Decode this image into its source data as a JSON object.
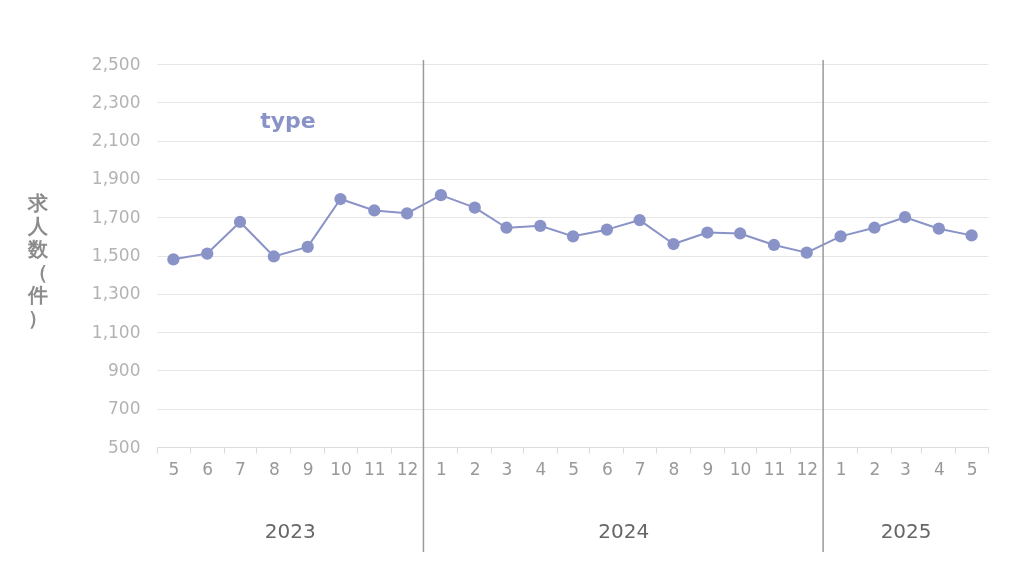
{
  "chart_data": {
    "type": "line",
    "ylabel": "求人数（件）",
    "x": [
      "2023-05",
      "2023-06",
      "2023-07",
      "2023-08",
      "2023-09",
      "2023-10",
      "2023-11",
      "2023-12",
      "2024-01",
      "2024-02",
      "2024-03",
      "2024-04",
      "2024-05",
      "2024-06",
      "2024-07",
      "2024-08",
      "2024-09",
      "2024-10",
      "2024-11",
      "2024-12",
      "2025-01",
      "2025-02",
      "2025-03",
      "2025-04",
      "2025-05"
    ],
    "series": [
      {
        "name": "type",
        "color": "#8a93c7",
        "values": [
          1480,
          1510,
          1675,
          1495,
          1545,
          1795,
          1735,
          1720,
          1815,
          1750,
          1645,
          1655,
          1600,
          1635,
          1685,
          1560,
          1620,
          1615,
          1555,
          1515,
          1600,
          1645,
          1700,
          1640,
          1605
        ]
      }
    ],
    "xlim": [
      "2023-04-16",
      "2025-05-16"
    ],
    "xticks": [
      {
        "value": "2023-04-16",
        "label": null
      },
      {
        "value": "2023-05",
        "label": "5"
      },
      {
        "value": "2023-05-16",
        "label": null
      },
      {
        "value": "2023-06",
        "label": "6"
      },
      {
        "value": "2023-06-16",
        "label": null
      },
      {
        "value": "2023-07",
        "label": "7"
      },
      {
        "value": "2023-07-16",
        "label": null
      },
      {
        "value": "2023-08",
        "label": "8"
      },
      {
        "value": "2023-08-16",
        "label": null
      },
      {
        "value": "2023-09",
        "label": "9"
      },
      {
        "value": "2023-09-16",
        "label": null
      },
      {
        "value": "2023-10",
        "label": "10"
      },
      {
        "value": "2023-10-16",
        "label": null
      },
      {
        "value": "2023-11",
        "label": "11"
      },
      {
        "value": "2023-11-16",
        "label": null
      },
      {
        "value": "2023-12",
        "label": "12"
      },
      {
        "value": "2023-12-16",
        "label": null
      },
      {
        "value": "2024-01",
        "label": "1"
      },
      {
        "value": "2024-01-16",
        "label": null
      },
      {
        "value": "2024-02",
        "label": "2"
      },
      {
        "value": "2024-02-16",
        "label": null
      },
      {
        "value": "2024-03",
        "label": "3"
      },
      {
        "value": "2024-03-16",
        "label": null
      },
      {
        "value": "2024-04",
        "label": "4"
      },
      {
        "value": "2024-04-16",
        "label": null
      },
      {
        "value": "2024-05",
        "label": "5"
      },
      {
        "value": "2024-05-16",
        "label": null
      },
      {
        "value": "2024-06",
        "label": "6"
      },
      {
        "value": "2024-06-16",
        "label": null
      },
      {
        "value": "2024-07",
        "label": "7"
      },
      {
        "value": "2024-07-16",
        "label": null
      },
      {
        "value": "2024-08",
        "label": "8"
      },
      {
        "value": "2024-08-16",
        "label": null
      },
      {
        "value": "2024-09",
        "label": "9"
      },
      {
        "value": "2024-09-16",
        "label": null
      },
      {
        "value": "2024-10",
        "label": "10"
      },
      {
        "value": "2024-10-16",
        "label": null
      },
      {
        "value": "2024-11",
        "label": "11"
      },
      {
        "value": "2024-11-16",
        "label": null
      },
      {
        "value": "2024-12",
        "label": "12"
      },
      {
        "value": "2024-12-16",
        "label": null
      },
      {
        "value": "2025-01",
        "label": "1"
      },
      {
        "value": "2025-01-16",
        "label": null
      },
      {
        "value": "2025-02",
        "label": "2"
      },
      {
        "value": "2025-02-16",
        "label": null
      },
      {
        "value": "2025-03",
        "label": "3"
      },
      {
        "value": "2025-03-16",
        "label": null
      },
      {
        "value": "2025-04",
        "label": "4"
      },
      {
        "value": "2025-04-16",
        "label": null
      },
      {
        "value": "2025-05",
        "label": "5"
      },
      {
        "value": "2025-05-16",
        "label": null
      }
    ],
    "ylim": [
      500,
      2500
    ],
    "yticks": [
      500,
      700,
      900,
      {
        "value": 1100,
        "label": "1,100"
      },
      {
        "value": 1300,
        "label": "1,300"
      },
      {
        "value": 1500,
        "label": "1,500"
      },
      {
        "value": 1700,
        "label": "1,700"
      },
      {
        "value": 1900,
        "label": "1,900"
      },
      {
        "value": 2100,
        "label": "2,100"
      },
      {
        "value": 2300,
        "label": "2,300"
      },
      {
        "value": 2500,
        "label": "2,500"
      }
    ],
    "grid": "y",
    "legend": "top left",
    "marker": "circle",
    "line_style": "solid",
    "ref_lines": [
      {
        "axis": "x",
        "value": "2023-12-16",
        "color": "#9a9a9a"
      },
      {
        "axis": "x",
        "value": "2024-12-16",
        "color": "#9a9a9a"
      }
    ],
    "annotations": [
      "2023",
      "2024",
      "2025"
    ]
  }
}
